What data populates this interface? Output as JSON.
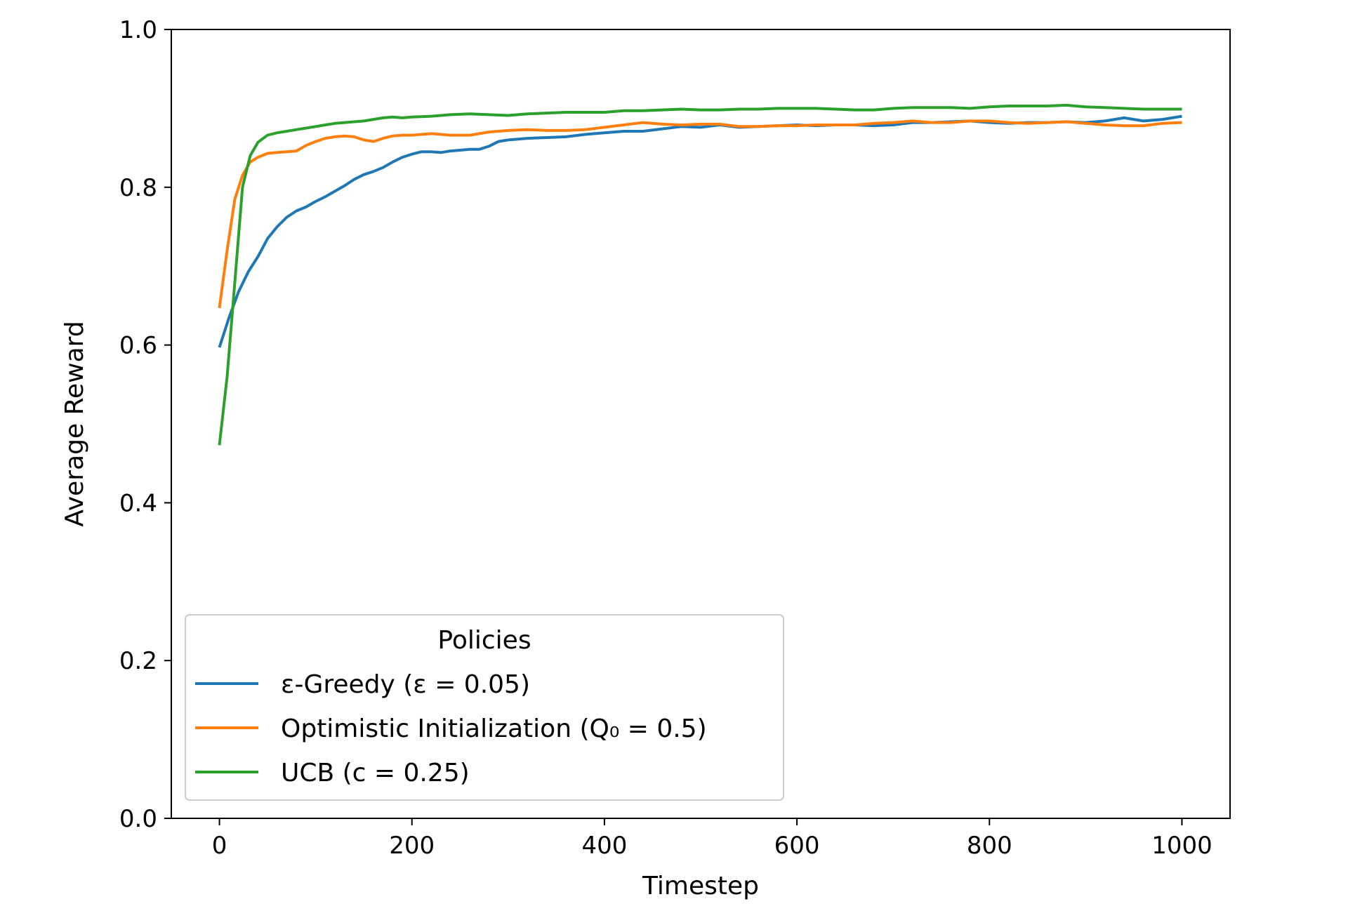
{
  "chart_data": {
    "type": "line",
    "title": "",
    "xlabel": "Timestep",
    "ylabel": "Average Reward",
    "xlim": [
      -50,
      1050
    ],
    "ylim": [
      0.0,
      1.0
    ],
    "x_ticks": [
      0,
      200,
      400,
      600,
      800,
      1000
    ],
    "x_tick_labels": [
      "0",
      "200",
      "400",
      "600",
      "800",
      "1000"
    ],
    "y_ticks": [
      0.0,
      0.2,
      0.4,
      0.6,
      0.8,
      1.0
    ],
    "y_tick_labels": [
      "0.0",
      "0.2",
      "0.4",
      "0.6",
      "0.8",
      "1.0"
    ],
    "grid": false,
    "legend": {
      "title": "Policies",
      "position": "lower-left"
    },
    "series": [
      {
        "name": "ε-Greedy (ε = 0.05)",
        "color": "#1f77b4",
        "points": [
          [
            0,
            0.597
          ],
          [
            10,
            0.635
          ],
          [
            20,
            0.668
          ],
          [
            30,
            0.693
          ],
          [
            40,
            0.712
          ],
          [
            50,
            0.735
          ],
          [
            60,
            0.75
          ],
          [
            70,
            0.762
          ],
          [
            80,
            0.77
          ],
          [
            90,
            0.775
          ],
          [
            100,
            0.782
          ],
          [
            110,
            0.788
          ],
          [
            120,
            0.795
          ],
          [
            130,
            0.802
          ],
          [
            140,
            0.81
          ],
          [
            150,
            0.816
          ],
          [
            160,
            0.82
          ],
          [
            170,
            0.825
          ],
          [
            180,
            0.832
          ],
          [
            190,
            0.838
          ],
          [
            200,
            0.842
          ],
          [
            210,
            0.845
          ],
          [
            220,
            0.845
          ],
          [
            230,
            0.844
          ],
          [
            240,
            0.846
          ],
          [
            250,
            0.847
          ],
          [
            260,
            0.848
          ],
          [
            270,
            0.848
          ],
          [
            280,
            0.852
          ],
          [
            290,
            0.858
          ],
          [
            300,
            0.86
          ],
          [
            320,
            0.862
          ],
          [
            340,
            0.863
          ],
          [
            360,
            0.864
          ],
          [
            380,
            0.867
          ],
          [
            400,
            0.869
          ],
          [
            420,
            0.871
          ],
          [
            440,
            0.871
          ],
          [
            460,
            0.874
          ],
          [
            480,
            0.877
          ],
          [
            500,
            0.876
          ],
          [
            520,
            0.879
          ],
          [
            540,
            0.876
          ],
          [
            560,
            0.877
          ],
          [
            580,
            0.878
          ],
          [
            600,
            0.879
          ],
          [
            620,
            0.878
          ],
          [
            640,
            0.879
          ],
          [
            660,
            0.879
          ],
          [
            680,
            0.878
          ],
          [
            700,
            0.879
          ],
          [
            720,
            0.882
          ],
          [
            740,
            0.882
          ],
          [
            760,
            0.883
          ],
          [
            780,
            0.884
          ],
          [
            800,
            0.882
          ],
          [
            820,
            0.881
          ],
          [
            840,
            0.882
          ],
          [
            860,
            0.882
          ],
          [
            880,
            0.883
          ],
          [
            900,
            0.882
          ],
          [
            920,
            0.884
          ],
          [
            940,
            0.888
          ],
          [
            960,
            0.884
          ],
          [
            980,
            0.886
          ],
          [
            1000,
            0.89
          ]
        ]
      },
      {
        "name": "Optimistic Initialization (Q₀ = 0.5)",
        "color": "#ff7f0e",
        "points": [
          [
            0,
            0.647
          ],
          [
            8,
            0.72
          ],
          [
            16,
            0.785
          ],
          [
            24,
            0.815
          ],
          [
            32,
            0.832
          ],
          [
            40,
            0.838
          ],
          [
            50,
            0.843
          ],
          [
            60,
            0.844
          ],
          [
            70,
            0.845
          ],
          [
            80,
            0.846
          ],
          [
            90,
            0.853
          ],
          [
            100,
            0.858
          ],
          [
            110,
            0.862
          ],
          [
            120,
            0.864
          ],
          [
            130,
            0.865
          ],
          [
            140,
            0.864
          ],
          [
            150,
            0.86
          ],
          [
            160,
            0.858
          ],
          [
            170,
            0.862
          ],
          [
            180,
            0.865
          ],
          [
            190,
            0.866
          ],
          [
            200,
            0.866
          ],
          [
            220,
            0.868
          ],
          [
            240,
            0.866
          ],
          [
            260,
            0.866
          ],
          [
            280,
            0.87
          ],
          [
            300,
            0.872
          ],
          [
            320,
            0.873
          ],
          [
            340,
            0.872
          ],
          [
            360,
            0.872
          ],
          [
            380,
            0.873
          ],
          [
            400,
            0.876
          ],
          [
            420,
            0.879
          ],
          [
            440,
            0.882
          ],
          [
            460,
            0.88
          ],
          [
            480,
            0.879
          ],
          [
            500,
            0.88
          ],
          [
            520,
            0.88
          ],
          [
            540,
            0.877
          ],
          [
            560,
            0.877
          ],
          [
            580,
            0.878
          ],
          [
            600,
            0.878
          ],
          [
            620,
            0.879
          ],
          [
            640,
            0.879
          ],
          [
            660,
            0.879
          ],
          [
            680,
            0.881
          ],
          [
            700,
            0.882
          ],
          [
            720,
            0.884
          ],
          [
            740,
            0.882
          ],
          [
            760,
            0.882
          ],
          [
            780,
            0.884
          ],
          [
            800,
            0.884
          ],
          [
            820,
            0.882
          ],
          [
            840,
            0.881
          ],
          [
            860,
            0.882
          ],
          [
            880,
            0.883
          ],
          [
            900,
            0.881
          ],
          [
            920,
            0.879
          ],
          [
            940,
            0.878
          ],
          [
            960,
            0.878
          ],
          [
            980,
            0.881
          ],
          [
            1000,
            0.882
          ]
        ]
      },
      {
        "name": "UCB (c = 0.25)",
        "color": "#2ca02c",
        "points": [
          [
            0,
            0.473
          ],
          [
            8,
            0.56
          ],
          [
            16,
            0.68
          ],
          [
            24,
            0.8
          ],
          [
            32,
            0.84
          ],
          [
            40,
            0.857
          ],
          [
            50,
            0.866
          ],
          [
            60,
            0.869
          ],
          [
            70,
            0.871
          ],
          [
            80,
            0.873
          ],
          [
            90,
            0.875
          ],
          [
            100,
            0.877
          ],
          [
            110,
            0.879
          ],
          [
            120,
            0.881
          ],
          [
            130,
            0.882
          ],
          [
            140,
            0.883
          ],
          [
            150,
            0.884
          ],
          [
            160,
            0.886
          ],
          [
            170,
            0.888
          ],
          [
            180,
            0.889
          ],
          [
            190,
            0.888
          ],
          [
            200,
            0.889
          ],
          [
            220,
            0.89
          ],
          [
            240,
            0.892
          ],
          [
            260,
            0.893
          ],
          [
            280,
            0.892
          ],
          [
            300,
            0.891
          ],
          [
            320,
            0.893
          ],
          [
            340,
            0.894
          ],
          [
            360,
            0.895
          ],
          [
            380,
            0.895
          ],
          [
            400,
            0.895
          ],
          [
            420,
            0.897
          ],
          [
            440,
            0.897
          ],
          [
            460,
            0.898
          ],
          [
            480,
            0.899
          ],
          [
            500,
            0.898
          ],
          [
            520,
            0.898
          ],
          [
            540,
            0.899
          ],
          [
            560,
            0.899
          ],
          [
            580,
            0.9
          ],
          [
            600,
            0.9
          ],
          [
            620,
            0.9
          ],
          [
            640,
            0.899
          ],
          [
            660,
            0.898
          ],
          [
            680,
            0.898
          ],
          [
            700,
            0.9
          ],
          [
            720,
            0.901
          ],
          [
            740,
            0.901
          ],
          [
            760,
            0.901
          ],
          [
            780,
            0.9
          ],
          [
            800,
            0.902
          ],
          [
            820,
            0.903
          ],
          [
            840,
            0.903
          ],
          [
            860,
            0.903
          ],
          [
            880,
            0.904
          ],
          [
            900,
            0.902
          ],
          [
            920,
            0.901
          ],
          [
            940,
            0.9
          ],
          [
            960,
            0.899
          ],
          [
            980,
            0.899
          ],
          [
            1000,
            0.899
          ]
        ]
      }
    ]
  }
}
